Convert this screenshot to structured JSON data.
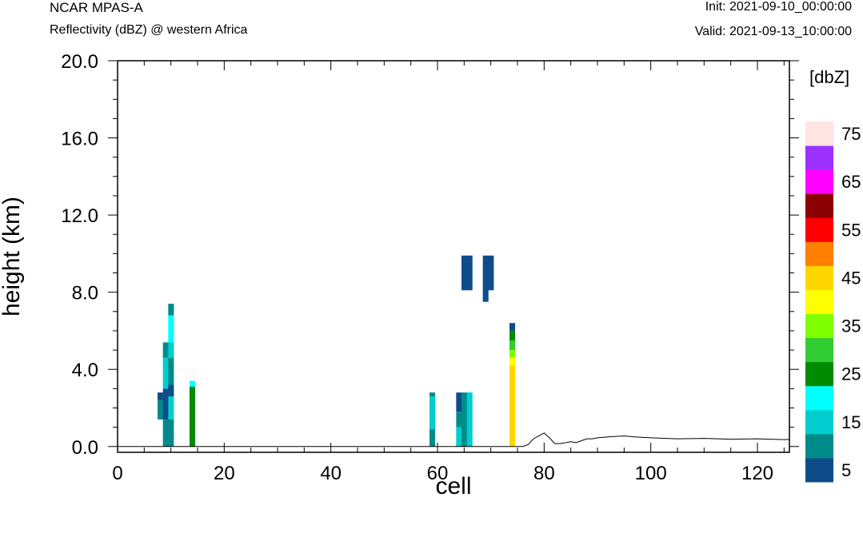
{
  "header": {
    "model": "NCAR MPAS-A",
    "subtitle": "Reflectivity (dBZ) @ western Africa",
    "init": "Init: 2021-09-10_00:00:00",
    "valid": "Valid: 2021-09-13_10:00:00"
  },
  "chart_data": {
    "type": "heatmap",
    "xlabel": "cell",
    "ylabel": "height (km)",
    "xlim": [
      0,
      126
    ],
    "ylim": [
      -0.3,
      20.0
    ],
    "x_ticks": [
      0,
      20,
      40,
      60,
      80,
      100,
      120
    ],
    "y_ticks": [
      "0.0",
      "4.0",
      "8.0",
      "12.0",
      "16.0",
      "20.0"
    ],
    "grid": false,
    "colorbar": {
      "unit": "[dbZ]",
      "label_values": [
        "5",
        "15",
        "25",
        "35",
        "45",
        "55",
        "65",
        "75"
      ],
      "bins": [
        {
          "min": 5,
          "max": 10,
          "color": "#0f4c8a"
        },
        {
          "min": 10,
          "max": 15,
          "color": "#008b8b"
        },
        {
          "min": 15,
          "max": 20,
          "color": "#00cdcd"
        },
        {
          "min": 20,
          "max": 25,
          "color": "#00ffff"
        },
        {
          "min": 25,
          "max": 30,
          "color": "#008b00"
        },
        {
          "min": 30,
          "max": 35,
          "color": "#32cd32"
        },
        {
          "min": 35,
          "max": 40,
          "color": "#7fff00"
        },
        {
          "min": 40,
          "max": 45,
          "color": "#ffff00"
        },
        {
          "min": 45,
          "max": 50,
          "color": "#ffd700"
        },
        {
          "min": 50,
          "max": 55,
          "color": "#ff7f00"
        },
        {
          "min": 55,
          "max": 60,
          "color": "#ff0000"
        },
        {
          "min": 60,
          "max": 65,
          "color": "#8b0000"
        },
        {
          "min": 65,
          "max": 70,
          "color": "#ff00ff"
        },
        {
          "min": 70,
          "max": 75,
          "color": "#9b30ff"
        },
        {
          "min": 75,
          "max": 80,
          "color": "#ffe4e1"
        }
      ]
    },
    "cells": [
      {
        "x": 8,
        "y0": 1.4,
        "y1": 2.4,
        "dbz": 12
      },
      {
        "x": 8,
        "y0": 2.4,
        "y1": 2.8,
        "dbz": 7
      },
      {
        "x": 9,
        "y0": 0.0,
        "y1": 1.4,
        "dbz": 12
      },
      {
        "x": 9,
        "y0": 1.4,
        "y1": 3.0,
        "dbz": 7
      },
      {
        "x": 9,
        "y0": 3.0,
        "y1": 4.6,
        "dbz": 17
      },
      {
        "x": 9,
        "y0": 4.6,
        "y1": 5.4,
        "dbz": 12
      },
      {
        "x": 10,
        "y0": 0.0,
        "y1": 1.4,
        "dbz": 12
      },
      {
        "x": 10,
        "y0": 1.4,
        "y1": 2.6,
        "dbz": 17
      },
      {
        "x": 10,
        "y0": 2.6,
        "y1": 3.2,
        "dbz": 7
      },
      {
        "x": 10,
        "y0": 3.2,
        "y1": 4.6,
        "dbz": 12
      },
      {
        "x": 10,
        "y0": 4.6,
        "y1": 5.4,
        "dbz": 17
      },
      {
        "x": 10,
        "y0": 5.4,
        "y1": 6.8,
        "dbz": 22
      },
      {
        "x": 10,
        "y0": 6.8,
        "y1": 7.4,
        "dbz": 12
      },
      {
        "x": 14,
        "y0": 0.0,
        "y1": 3.1,
        "dbz": 27
      },
      {
        "x": 14,
        "y0": 3.1,
        "y1": 3.4,
        "dbz": 22
      },
      {
        "x": 59,
        "y0": 0.0,
        "y1": 0.9,
        "dbz": 12
      },
      {
        "x": 59,
        "y0": 0.9,
        "y1": 2.6,
        "dbz": 17
      },
      {
        "x": 59,
        "y0": 2.6,
        "y1": 2.8,
        "dbz": 12
      },
      {
        "x": 64,
        "y0": 0.0,
        "y1": 1.0,
        "dbz": 17
      },
      {
        "x": 64,
        "y0": 1.0,
        "y1": 1.8,
        "dbz": 12
      },
      {
        "x": 64,
        "y0": 1.8,
        "y1": 2.8,
        "dbz": 7
      },
      {
        "x": 65,
        "y0": 0.0,
        "y1": 2.8,
        "dbz": 12
      },
      {
        "x": 66,
        "y0": 0.0,
        "y1": 2.8,
        "dbz": 17
      },
      {
        "x": 65,
        "y0": 8.1,
        "y1": 9.9,
        "dbz": 7
      },
      {
        "x": 66,
        "y0": 8.1,
        "y1": 9.9,
        "dbz": 7
      },
      {
        "x": 69,
        "y0": 7.5,
        "y1": 9.9,
        "dbz": 7
      },
      {
        "x": 70,
        "y0": 8.1,
        "y1": 9.9,
        "dbz": 7
      },
      {
        "x": 74,
        "y0": 0.0,
        "y1": 4.2,
        "dbz": 47
      },
      {
        "x": 74,
        "y0": 4.2,
        "y1": 4.6,
        "dbz": 42
      },
      {
        "x": 74,
        "y0": 4.6,
        "y1": 5.0,
        "dbz": 37
      },
      {
        "x": 74,
        "y0": 5.0,
        "y1": 5.5,
        "dbz": 32
      },
      {
        "x": 74,
        "y0": 5.5,
        "y1": 6.0,
        "dbz": 27
      },
      {
        "x": 74,
        "y0": 6.0,
        "y1": 6.4,
        "dbz": 7
      }
    ],
    "terrain": {
      "x": [
        0,
        76,
        77,
        78,
        79,
        80,
        81,
        82,
        83,
        84,
        85,
        86,
        87,
        88,
        89,
        90,
        92,
        95,
        97,
        100,
        105,
        110,
        115,
        120,
        125,
        126
      ],
      "y": [
        0.0,
        0.0,
        0.1,
        0.4,
        0.55,
        0.7,
        0.45,
        0.15,
        0.15,
        0.2,
        0.25,
        0.2,
        0.3,
        0.4,
        0.4,
        0.45,
        0.5,
        0.55,
        0.5,
        0.45,
        0.4,
        0.42,
        0.38,
        0.4,
        0.36,
        0.37
      ]
    }
  }
}
